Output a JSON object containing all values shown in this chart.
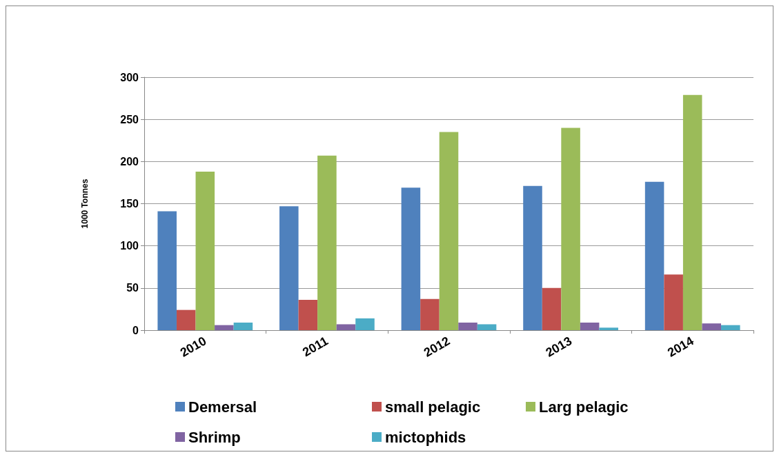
{
  "chart_data": {
    "type": "bar",
    "ylabel": "1000 Tonnes",
    "categories": [
      "2010",
      "2011",
      "2012",
      "2013",
      "2014"
    ],
    "series": [
      {
        "name": "Demersal",
        "color": "#4f81bd",
        "values": [
          141,
          147,
          169,
          171,
          176
        ]
      },
      {
        "name": "small pelagic",
        "color": "#c0504d",
        "values": [
          24,
          36,
          37,
          50,
          66
        ]
      },
      {
        "name": "Larg pelagic",
        "color": "#9bbb59",
        "values": [
          188,
          207,
          235,
          240,
          279
        ]
      },
      {
        "name": "Shrimp",
        "color": "#8064a2",
        "values": [
          6,
          7,
          9,
          9,
          8
        ]
      },
      {
        "name": "mictophids",
        "color": "#4bacc6",
        "values": [
          9,
          14,
          7,
          3,
          6
        ]
      }
    ],
    "ylim": [
      0,
      300
    ],
    "yticks": [
      0,
      50,
      100,
      150,
      200,
      250,
      300
    ],
    "grid": "y",
    "legend": "bottom"
  }
}
